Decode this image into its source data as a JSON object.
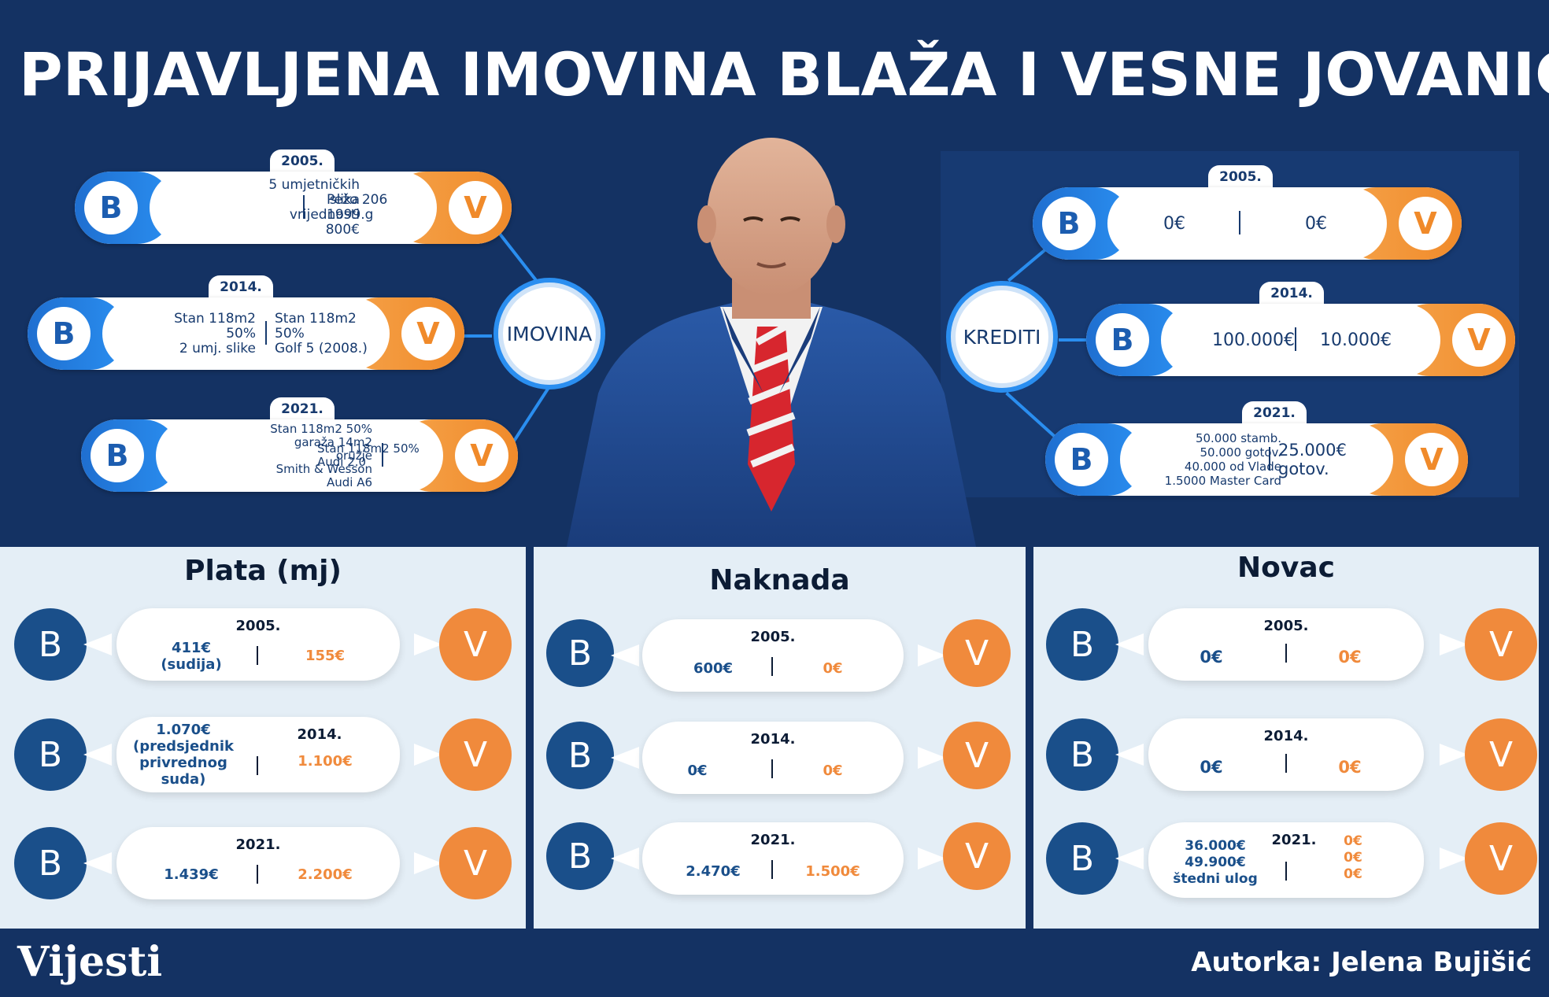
{
  "title": "PRIJAVLJENA IMOVINA BLAŽA I VESNE JOVANIĆ",
  "imovina": {
    "hub_label": "IMOVINA",
    "b_letter": "B",
    "v_letter": "V",
    "rows": [
      {
        "year": "2005.",
        "left": "5 umjetničkih\nslika\nvrijednosti\n800€",
        "right": "Pežo 206\n1999.g"
      },
      {
        "year": "2014.",
        "left": "Stan 118m2\n50%\n2 umj. slike",
        "right": "Stan 118m2\n50%\nGolf 5 (2008.)"
      },
      {
        "year": "2021.",
        "left": "Stan 118m2 50%\ngaraža 14m2\noružje\nSmith & Wesson\nAudi A6",
        "right": "Stan 118m2 50%\nAudi  2.0"
      }
    ]
  },
  "krediti": {
    "hub_label": "KREDITI",
    "rows": [
      {
        "year": "2005.",
        "left": "0€",
        "right": "0€"
      },
      {
        "year": "2014.",
        "left": "100.000€",
        "right": "10.000€"
      },
      {
        "year": "2021.",
        "left": "50.000 stamb.\n50.000 gotov.\n40.000 od Vlade\n1.5000 Master Card",
        "right": "25.000€\ngotov."
      }
    ]
  },
  "panels": [
    {
      "title": "Plata (mj)",
      "rows": [
        {
          "year": "2005.",
          "left": "411€\n(sudija)",
          "right": "155€"
        },
        {
          "year": "2014.",
          "left": "1.070€\n(predsjednik\nprivrednog\nsuda)",
          "right": "1.100€"
        },
        {
          "year": "2021.",
          "left": "1.439€",
          "right": "2.200€"
        }
      ]
    },
    {
      "title": "Naknada",
      "rows": [
        {
          "year": "2005.",
          "left": "600€",
          "right": "0€"
        },
        {
          "year": "2014.",
          "left": "0€",
          "right": "0€"
        },
        {
          "year": "2021.",
          "left": "2.470€",
          "right": "1.500€"
        }
      ]
    },
    {
      "title": "Novac",
      "rows": [
        {
          "year": "2005.",
          "left": "0€",
          "right": "0€"
        },
        {
          "year": "2014.",
          "left": "0€",
          "right": "0€"
        },
        {
          "year": "2021.",
          "left": "36.000€\n49.900€\nštedni ulog",
          "right": "0€\n0€\n0€"
        }
      ]
    }
  ],
  "logo": "Vijesti",
  "author": "Autorka: Jelena Bujišić",
  "colors": {
    "background": "#143263",
    "b_blue": "#1a4f8a",
    "v_orange": "#f08a3c",
    "panel": "#e4eef6"
  }
}
